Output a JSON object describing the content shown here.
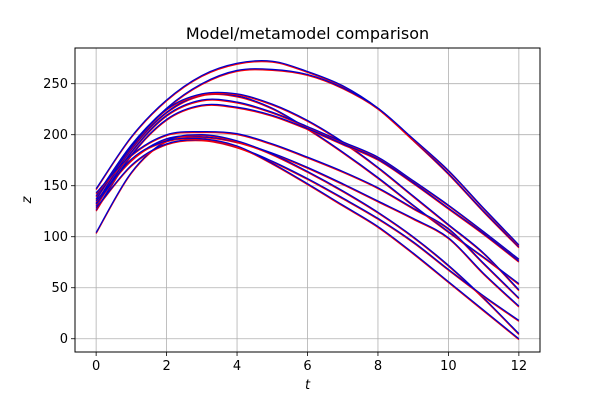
{
  "chart_data": {
    "type": "line",
    "title": "Model/metamodel comparison",
    "xlabel": "t",
    "ylabel": "z",
    "xlim": [
      -0.6,
      12.6
    ],
    "ylim": [
      -13,
      285
    ],
    "xticks": [
      0,
      2,
      4,
      6,
      8,
      10,
      12
    ],
    "yticks": [
      0,
      50,
      100,
      150,
      200,
      250
    ],
    "grid": true,
    "colors": {
      "model": "#ff0000",
      "metamodel": "#0000cc",
      "grid": "#b0b0b0"
    },
    "x": [
      0,
      1,
      2,
      3,
      4,
      5,
      6,
      7,
      8,
      9,
      10,
      11,
      12
    ],
    "series": [
      {
        "values": [
          147,
          198,
          234,
          258,
          270,
          272,
          262,
          248,
          226,
          195,
          162,
          125,
          90
        ]
      },
      {
        "values": [
          140,
          190,
          226,
          250,
          263,
          264,
          259,
          246,
          226,
          196,
          165,
          128,
          92
        ]
      },
      {
        "values": [
          133,
          186,
          222,
          239,
          238,
          226,
          206,
          183,
          158,
          131,
          105,
          80,
          54
        ]
      },
      {
        "values": [
          137,
          188,
          225,
          240,
          240,
          230,
          214,
          193,
          168,
          140,
          112,
          84,
          48
        ]
      },
      {
        "values": [
          130,
          183,
          219,
          234,
          232,
          222,
          208,
          193,
          178,
          155,
          131,
          105,
          78
        ]
      },
      {
        "values": [
          126,
          180,
          215,
          229,
          227,
          219,
          206,
          191,
          176,
          153,
          128,
          103,
          76
        ]
      },
      {
        "values": [
          143,
          180,
          200,
          203,
          201,
          191,
          178,
          164,
          148,
          128,
          108,
          74,
          40
        ]
      },
      {
        "values": [
          135,
          175,
          196,
          198,
          193,
          182,
          168,
          152,
          135,
          118,
          99,
          64,
          32
        ]
      },
      {
        "values": [
          104,
          163,
          194,
          200,
          194,
          181,
          164,
          145,
          124,
          100,
          72,
          40,
          5
        ]
      },
      {
        "values": [
          128,
          170,
          191,
          195,
          188,
          174,
          157,
          138,
          118,
          95,
          68,
          42,
          18
        ]
      },
      {
        "values": [
          132,
          176,
          194,
          196,
          189,
          172,
          152,
          131,
          110,
          84,
          56,
          28,
          0
        ]
      }
    ]
  }
}
